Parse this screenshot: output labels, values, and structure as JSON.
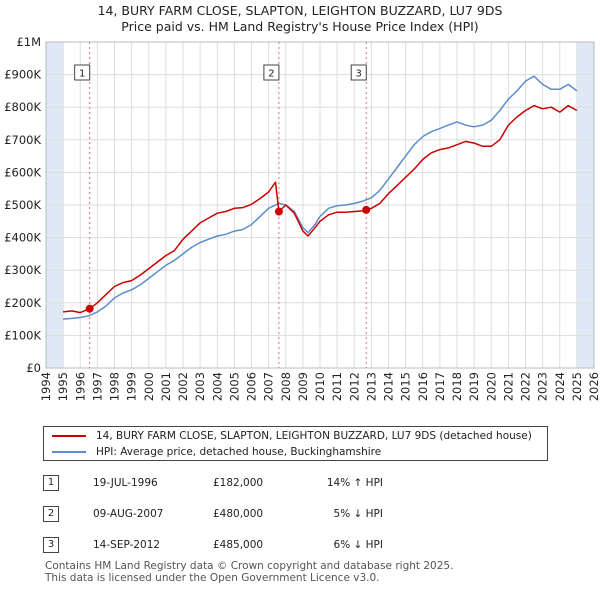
{
  "title": {
    "line1": "14, BURY FARM CLOSE, SLAPTON, LEIGHTON BUZZARD, LU7 9DS",
    "line2": "Price paid vs. HM Land Registry's House Price Index (HPI)"
  },
  "colors": {
    "property": "#cc0000",
    "hpi": "#5b8ecf",
    "shade": "#dfe8f5",
    "grid": "#dddddd",
    "marker_line": "#e07080"
  },
  "chart_data": {
    "type": "line",
    "title": "14, BURY FARM CLOSE, SLAPTON, LEIGHTON BUZZARD, LU7 9DS — Price paid vs. HM Land Registry's House Price Index (HPI)",
    "xlabel": "",
    "ylabel": "",
    "xlim": [
      1994,
      2026
    ],
    "ylim": [
      0,
      1000000
    ],
    "x_ticks": [
      1994,
      1995,
      1996,
      1997,
      1998,
      1999,
      2000,
      2001,
      2002,
      2003,
      2004,
      2005,
      2006,
      2007,
      2008,
      2009,
      2010,
      2011,
      2012,
      2013,
      2014,
      2015,
      2016,
      2017,
      2018,
      2019,
      2020,
      2021,
      2022,
      2023,
      2024,
      2025,
      2026
    ],
    "y_ticks": [
      0,
      100000,
      200000,
      300000,
      400000,
      500000,
      600000,
      700000,
      800000,
      900000,
      1000000
    ],
    "y_tick_labels": [
      "£0",
      "£100K",
      "£200K",
      "£300K",
      "£400K",
      "£500K",
      "£600K",
      "£700K",
      "£800K",
      "£900K",
      "£1M"
    ],
    "grid": true,
    "legend_position": "below",
    "shaded_x_ranges": [
      [
        1994,
        1995
      ],
      [
        2025,
        2026
      ]
    ],
    "series": [
      {
        "name": "14, BURY FARM CLOSE, SLAPTON, LEIGHTON BUZZARD, LU7 9DS (detached house)",
        "x": [
          1995.0,
          1995.5,
          1996.0,
          1996.55,
          1997.0,
          1997.5,
          1998.0,
          1998.5,
          1999.0,
          1999.5,
          2000.0,
          2000.5,
          2001.0,
          2001.5,
          2002.0,
          2002.5,
          2003.0,
          2003.5,
          2004.0,
          2004.5,
          2005.0,
          2005.5,
          2006.0,
          2006.5,
          2007.0,
          2007.4,
          2007.6,
          2008.0,
          2008.5,
          2009.0,
          2009.3,
          2009.7,
          2010.0,
          2010.5,
          2011.0,
          2011.5,
          2012.0,
          2012.5,
          2012.7,
          2013.0,
          2013.5,
          2014.0,
          2014.5,
          2015.0,
          2015.5,
          2016.0,
          2016.5,
          2017.0,
          2017.5,
          2018.0,
          2018.5,
          2019.0,
          2019.5,
          2020.0,
          2020.5,
          2021.0,
          2021.5,
          2022.0,
          2022.5,
          2023.0,
          2023.5,
          2024.0,
          2024.5,
          2025.0
        ],
        "values": [
          172000,
          175000,
          170000,
          182000,
          200000,
          225000,
          250000,
          262000,
          268000,
          285000,
          305000,
          325000,
          345000,
          360000,
          395000,
          420000,
          445000,
          460000,
          475000,
          480000,
          490000,
          492000,
          502000,
          520000,
          540000,
          570000,
          480000,
          500000,
          475000,
          420000,
          405000,
          430000,
          450000,
          470000,
          478000,
          478000,
          480000,
          482000,
          485000,
          490000,
          505000,
          535000,
          560000,
          585000,
          610000,
          640000,
          660000,
          670000,
          675000,
          685000,
          695000,
          690000,
          680000,
          680000,
          700000,
          745000,
          770000,
          790000,
          805000,
          795000,
          800000,
          785000,
          805000,
          790000
        ]
      },
      {
        "name": "HPI: Average price, detached house, Buckinghamshire",
        "x": [
          1995.0,
          1995.5,
          1996.0,
          1996.5,
          1997.0,
          1997.5,
          1998.0,
          1998.5,
          1999.0,
          1999.5,
          2000.0,
          2000.5,
          2001.0,
          2001.5,
          2002.0,
          2002.5,
          2003.0,
          2003.5,
          2004.0,
          2004.5,
          2005.0,
          2005.5,
          2006.0,
          2006.5,
          2007.0,
          2007.6,
          2008.0,
          2008.5,
          2009.0,
          2009.3,
          2009.7,
          2010.0,
          2010.5,
          2011.0,
          2011.5,
          2012.0,
          2012.5,
          2013.0,
          2013.5,
          2014.0,
          2014.5,
          2015.0,
          2015.5,
          2016.0,
          2016.5,
          2017.0,
          2017.5,
          2018.0,
          2018.5,
          2019.0,
          2019.5,
          2020.0,
          2020.5,
          2021.0,
          2021.5,
          2022.0,
          2022.5,
          2023.0,
          2023.5,
          2024.0,
          2024.5,
          2025.0
        ],
        "values": [
          150000,
          152000,
          155000,
          160000,
          172000,
          190000,
          215000,
          230000,
          240000,
          255000,
          275000,
          295000,
          315000,
          330000,
          350000,
          370000,
          385000,
          395000,
          405000,
          410000,
          420000,
          425000,
          440000,
          465000,
          490000,
          505000,
          500000,
          480000,
          430000,
          415000,
          440000,
          465000,
          490000,
          498000,
          500000,
          505000,
          512000,
          522000,
          545000,
          580000,
          615000,
          650000,
          685000,
          710000,
          725000,
          735000,
          745000,
          755000,
          745000,
          740000,
          745000,
          760000,
          790000,
          825000,
          850000,
          880000,
          895000,
          870000,
          855000,
          855000,
          870000,
          850000
        ]
      }
    ],
    "sales": [
      {
        "id": "1",
        "x": 1996.55,
        "value": 182000
      },
      {
        "id": "2",
        "x": 2007.6,
        "value": 480000
      },
      {
        "id": "3",
        "x": 2012.7,
        "value": 485000
      }
    ]
  },
  "legend": {
    "property": "14, BURY FARM CLOSE, SLAPTON, LEIGHTON BUZZARD, LU7 9DS (detached house)",
    "hpi": "HPI: Average price, detached house, Buckinghamshire"
  },
  "sales_table": [
    {
      "num": "1",
      "date": "19-JUL-1996",
      "price": "£182,000",
      "hpi": "14% ↑ HPI"
    },
    {
      "num": "2",
      "date": "09-AUG-2007",
      "price": "£480,000",
      "hpi": "5% ↓ HPI"
    },
    {
      "num": "3",
      "date": "14-SEP-2012",
      "price": "£485,000",
      "hpi": "6% ↓ HPI"
    }
  ],
  "footer": {
    "line1": "Contains HM Land Registry data © Crown copyright and database right 2025.",
    "line2": "This data is licensed under the Open Government Licence v3.0."
  }
}
